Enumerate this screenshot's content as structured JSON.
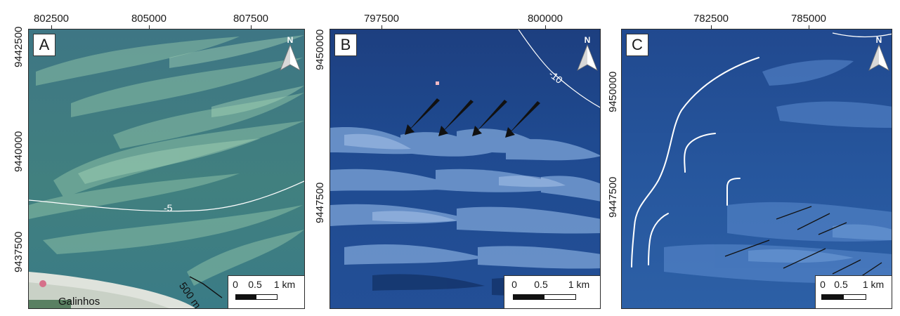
{
  "panels": [
    {
      "id": "A",
      "label": "A",
      "x_ticks": [
        "802500",
        "805000",
        "807500"
      ],
      "y_ticks": [
        "9442500",
        "9440000",
        "9437500"
      ],
      "contour_label": "-5",
      "distance_label": "500 m",
      "place_label": "Galinhos",
      "north_label": "N",
      "scale_labels": [
        "0",
        "0.5",
        "1 km"
      ]
    },
    {
      "id": "B",
      "label": "B",
      "x_ticks": [
        "797500",
        "800000"
      ],
      "y_ticks": [
        "9450000",
        "9447500"
      ],
      "contour_label": "-10",
      "north_label": "N",
      "scale_labels": [
        "0",
        "0.5",
        "1 km"
      ]
    },
    {
      "id": "C",
      "label": "C",
      "x_ticks": [
        "782500",
        "785000"
      ],
      "y_ticks": [
        "9450000",
        "9447500"
      ],
      "north_label": "N",
      "scale_labels": [
        "0",
        "0.5",
        "1 km"
      ]
    }
  ],
  "colors": {
    "panel_a_water": "#3f7e8a",
    "panel_b_water": "#1e4a8f",
    "panel_c_water": "#25579e",
    "shoal_a": "#8fc2a5",
    "shoal_b": "#7fa6db",
    "shoal_c": "#5e8ed0",
    "arrow": "#111111",
    "contour": "#ffffff",
    "pink_marker": "#d6708a"
  },
  "icons": [
    "north-arrow-icon",
    "flow-direction-arrow-icon"
  ]
}
